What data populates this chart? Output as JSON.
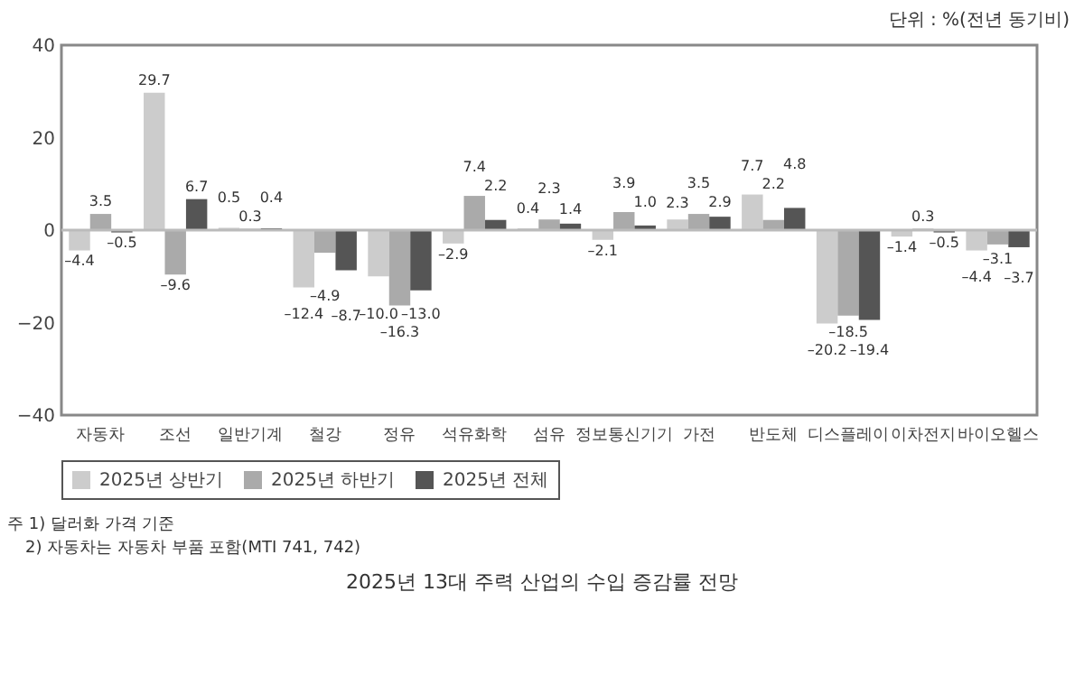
{
  "chart_data": {
    "type": "bar",
    "title": "2025년 13대 주력 산업의 수입 증감률 전망",
    "annotations": [
      "단위 : %(전년 동기비)",
      "주 1) 달러화 가격 기준",
      "2) 자동차는 자동차 부품 포함(MTI 741, 742)"
    ],
    "categories": [
      "자동차",
      "조선",
      "일반기계",
      "철강",
      "정유",
      "석유화학",
      "섬유",
      "정보통신기기",
      "가전",
      "반도체",
      "디스플레이",
      "이차전지",
      "바이오헬스"
    ],
    "series": [
      {
        "name": "2025년 상반기",
        "color": "#cccccc",
        "values": [
          -4.4,
          29.7,
          0.5,
          -12.4,
          -10.0,
          -2.9,
          0.4,
          -2.1,
          2.3,
          7.7,
          -20.2,
          -1.4,
          -4.4
        ],
        "value_labels": [
          "–4.4",
          "29.7",
          "0.5",
          "–12.4",
          "–10.0",
          "–2.9",
          "0.4",
          "–2.1",
          "2.3",
          "7.7",
          "–20.2",
          "–1.4",
          "–4.4"
        ]
      },
      {
        "name": "2025년 하반기",
        "color": "#aaaaaa",
        "values": [
          3.5,
          -9.6,
          0.3,
          -4.9,
          -16.3,
          7.4,
          2.3,
          3.9,
          3.5,
          2.2,
          -18.5,
          0.3,
          -3.1
        ],
        "value_labels": [
          "3.5",
          "–9.6",
          "0.3",
          "–4.9",
          "–16.3",
          "7.4",
          "2.3",
          "3.9",
          "3.5",
          "2.2",
          "–18.5",
          "0.3",
          "–3.1"
        ]
      },
      {
        "name": "2025년 전체",
        "color": "#555555",
        "values": [
          -0.5,
          6.7,
          0.4,
          -8.7,
          -13.0,
          2.2,
          1.4,
          1.0,
          2.9,
          4.8,
          -19.4,
          -0.5,
          -3.7
        ],
        "value_labels": [
          "–0.5",
          "6.7",
          "0.4",
          "–8.7",
          "–13.0",
          "2.2",
          "1.4",
          "1.0",
          "2.9",
          "4.8",
          "–19.4",
          "–0.5",
          "–3.7"
        ]
      }
    ],
    "ylim": [
      -40,
      40
    ],
    "yticks": [
      -40,
      -20,
      0,
      20,
      40
    ],
    "legend": "bottom"
  }
}
